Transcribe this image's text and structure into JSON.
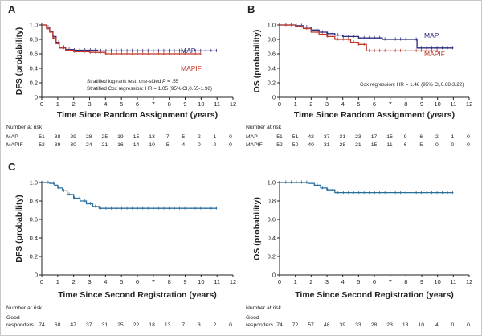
{
  "colors": {
    "map": "#2b2c7e",
    "mapif": "#c0392b",
    "single": "#2a6e9e"
  },
  "panels": [
    {
      "id": "A",
      "letter": "A",
      "ylabel": "DFS (probability)",
      "xlabel": "Time Since Random Assignment (years)",
      "xticks": [
        "0",
        "1",
        "2",
        "3",
        "4",
        "5",
        "6",
        "7",
        "8",
        "9",
        "10",
        "11",
        "12"
      ],
      "yticks": [
        "0",
        "0.2",
        "0.4",
        "0.6",
        "0.8",
        "1.0"
      ],
      "annotations": [
        "Stratified log-rank test: one-sided P = .55",
        "Stratified Cox regression: HR = 1.05 (95% CI,0.55-1.98)"
      ],
      "risk_header": "Number at risk",
      "risk_rows": [
        {
          "label": "MAP",
          "values": [
            "51",
            "38",
            "29",
            "28",
            "25",
            "19",
            "15",
            "13",
            "7",
            "5",
            "2",
            "1",
            "0"
          ]
        },
        {
          "label": "MAPIF",
          "values": [
            "52",
            "39",
            "30",
            "24",
            "21",
            "16",
            "14",
            "10",
            "5",
            "4",
            "0",
            "0",
            "0"
          ]
        }
      ]
    },
    {
      "id": "B",
      "letter": "B",
      "ylabel": "OS (probability)",
      "xlabel": "Time Since Random Assignment (years)",
      "xticks": [
        "0",
        "1",
        "2",
        "3",
        "4",
        "5",
        "6",
        "7",
        "8",
        "9",
        "10",
        "11",
        "12"
      ],
      "yticks": [
        "0",
        "0.2",
        "0.4",
        "0.6",
        "0.8",
        "1.0"
      ],
      "annotations": [
        "Cox regression: HR = 1.48 (95% CI,0.68-3.22)"
      ],
      "risk_header": "Number at risk",
      "risk_rows": [
        {
          "label": "MAP",
          "values": [
            "51",
            "51",
            "42",
            "37",
            "31",
            "23",
            "17",
            "15",
            "9",
            "6",
            "2",
            "1",
            "0"
          ]
        },
        {
          "label": "MAPIF",
          "values": [
            "52",
            "50",
            "40",
            "31",
            "28",
            "21",
            "15",
            "11",
            "6",
            "5",
            "0",
            "0",
            "0"
          ]
        }
      ]
    },
    {
      "id": "C",
      "letter": "C",
      "ylabel": "DFS (probability)",
      "xlabel": "Time Since Second Registration (years)",
      "xticks": [
        "0",
        "1",
        "2",
        "3",
        "4",
        "5",
        "6",
        "7",
        "8",
        "9",
        "10",
        "11",
        "12"
      ],
      "yticks": [
        "0",
        "0.2",
        "0.4",
        "0.6",
        "0.8",
        "1.0"
      ],
      "annotations": [],
      "risk_header": "Number at risk",
      "risk_rows": [
        {
          "label": "Good",
          "label2": "responders",
          "values": [
            "74",
            "68",
            "47",
            "37",
            "31",
            "25",
            "22",
            "18",
            "13",
            "7",
            "3",
            "2",
            "0"
          ]
        }
      ]
    },
    {
      "id": "D",
      "letter": "",
      "ylabel": "OS (probability)",
      "xlabel": "Time Since Second Registration (years)",
      "xticks": [
        "0",
        "1",
        "2",
        "3",
        "4",
        "5",
        "6",
        "7",
        "8",
        "9",
        "10",
        "11",
        "12"
      ],
      "yticks": [
        "0",
        "0.2",
        "0.4",
        "0.6",
        "0.8",
        "1.0"
      ],
      "annotations": [],
      "risk_header": "Number at risk",
      "risk_rows": [
        {
          "label": "Good",
          "label2": "responders",
          "values": [
            "74",
            "72",
            "57",
            "48",
            "39",
            "33",
            "28",
            "23",
            "18",
            "10",
            "4",
            "0",
            "0"
          ]
        }
      ]
    }
  ],
  "chart_data": [
    {
      "type": "line",
      "panel": "A",
      "xlabel": "Time Since Random Assignment (years)",
      "ylabel": "DFS (probability)",
      "xlim": [
        0,
        12
      ],
      "ylim": [
        0,
        1.0
      ],
      "series": [
        {
          "name": "MAP",
          "color": "#2b2c7e",
          "x": [
            0,
            0.3,
            0.5,
            0.7,
            0.9,
            1.1,
            1.5,
            2.0,
            3.5,
            11.0
          ],
          "y": [
            1.0,
            0.97,
            0.91,
            0.84,
            0.76,
            0.69,
            0.66,
            0.65,
            0.64,
            0.64
          ]
        },
        {
          "name": "MAPIF",
          "color": "#c0392b",
          "x": [
            0,
            0.3,
            0.5,
            0.7,
            0.9,
            1.1,
            1.5,
            2.0,
            3.0,
            4.0,
            9.5,
            10.0
          ],
          "y": [
            1.0,
            0.95,
            0.9,
            0.82,
            0.74,
            0.68,
            0.65,
            0.63,
            0.62,
            0.6,
            0.6,
            0.6
          ]
        }
      ]
    },
    {
      "type": "line",
      "panel": "B",
      "xlabel": "Time Since Random Assignment (years)",
      "ylabel": "OS (probability)",
      "xlim": [
        0,
        12
      ],
      "ylim": [
        0,
        1.0
      ],
      "series": [
        {
          "name": "MAP",
          "color": "#2b2c7e",
          "x": [
            0,
            1.0,
            1.5,
            2.0,
            2.5,
            3.0,
            3.5,
            4.0,
            5.0,
            6.5,
            8.7,
            11.0
          ],
          "y": [
            1.0,
            0.99,
            0.97,
            0.93,
            0.9,
            0.88,
            0.86,
            0.84,
            0.82,
            0.8,
            0.68,
            0.68
          ]
        },
        {
          "name": "MAPIF",
          "color": "#c0392b",
          "x": [
            0,
            1.0,
            1.5,
            2.0,
            2.5,
            3.0,
            3.5,
            4.5,
            5.0,
            5.5,
            6.5,
            9.5,
            10.0
          ],
          "y": [
            1.0,
            0.98,
            0.95,
            0.9,
            0.87,
            0.84,
            0.8,
            0.76,
            0.73,
            0.64,
            0.64,
            0.64,
            0.64
          ]
        }
      ]
    },
    {
      "type": "line",
      "panel": "C",
      "xlabel": "Time Since Second Registration (years)",
      "ylabel": "DFS (probability)",
      "xlim": [
        0,
        12
      ],
      "ylim": [
        0,
        1.0
      ],
      "series": [
        {
          "name": "Good responders",
          "color": "#2a6e9e",
          "x": [
            0,
            0.5,
            0.8,
            1.0,
            1.3,
            1.6,
            2.0,
            2.4,
            2.8,
            3.2,
            3.6,
            11.0
          ],
          "y": [
            1.0,
            0.99,
            0.97,
            0.94,
            0.91,
            0.87,
            0.83,
            0.8,
            0.77,
            0.74,
            0.72,
            0.72
          ]
        }
      ]
    },
    {
      "type": "line",
      "panel": "D",
      "xlabel": "Time Since Second Registration (years)",
      "ylabel": "OS (probability)",
      "xlim": [
        0,
        12
      ],
      "ylim": [
        0,
        1.0
      ],
      "series": [
        {
          "name": "Good responders",
          "color": "#2a6e9e",
          "x": [
            0,
            1.8,
            2.2,
            2.6,
            3.0,
            3.5,
            11.0
          ],
          "y": [
            1.0,
            0.99,
            0.97,
            0.94,
            0.92,
            0.89,
            0.89
          ]
        }
      ]
    }
  ]
}
